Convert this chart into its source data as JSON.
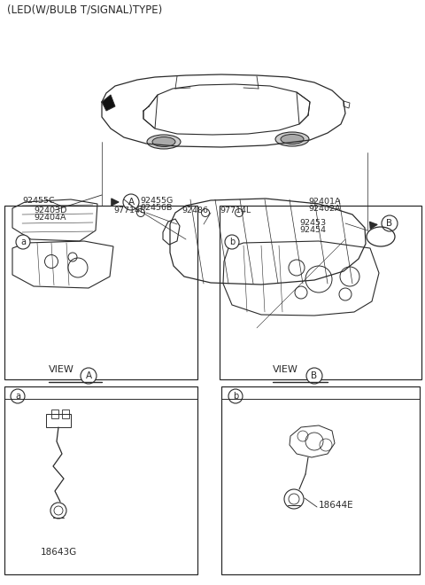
{
  "bg_color": "#ffffff",
  "line_color": "#2a2a2a",
  "text_color": "#2a2a2a",
  "title": "(LED(W/BULB T/SIGNAL)TYPE)",
  "label_92403D": "92403D",
  "label_92404A": "92404A",
  "label_97714L_l": "97714L",
  "label_97714L_r": "97714L",
  "label_92486": "92486",
  "label_92401A": "92401A",
  "label_92402A": "92402A",
  "label_92453": "92453",
  "label_92454": "92454",
  "label_92455C": "92455C",
  "label_92455G": "92455G",
  "label_92456B": "92456B",
  "label_18643G": "18643G",
  "label_18644E": "18644E",
  "label_view_a": "VIEW",
  "label_view_b": "VIEW",
  "figsize": [
    4.8,
    6.6
  ],
  "dpi": 100
}
